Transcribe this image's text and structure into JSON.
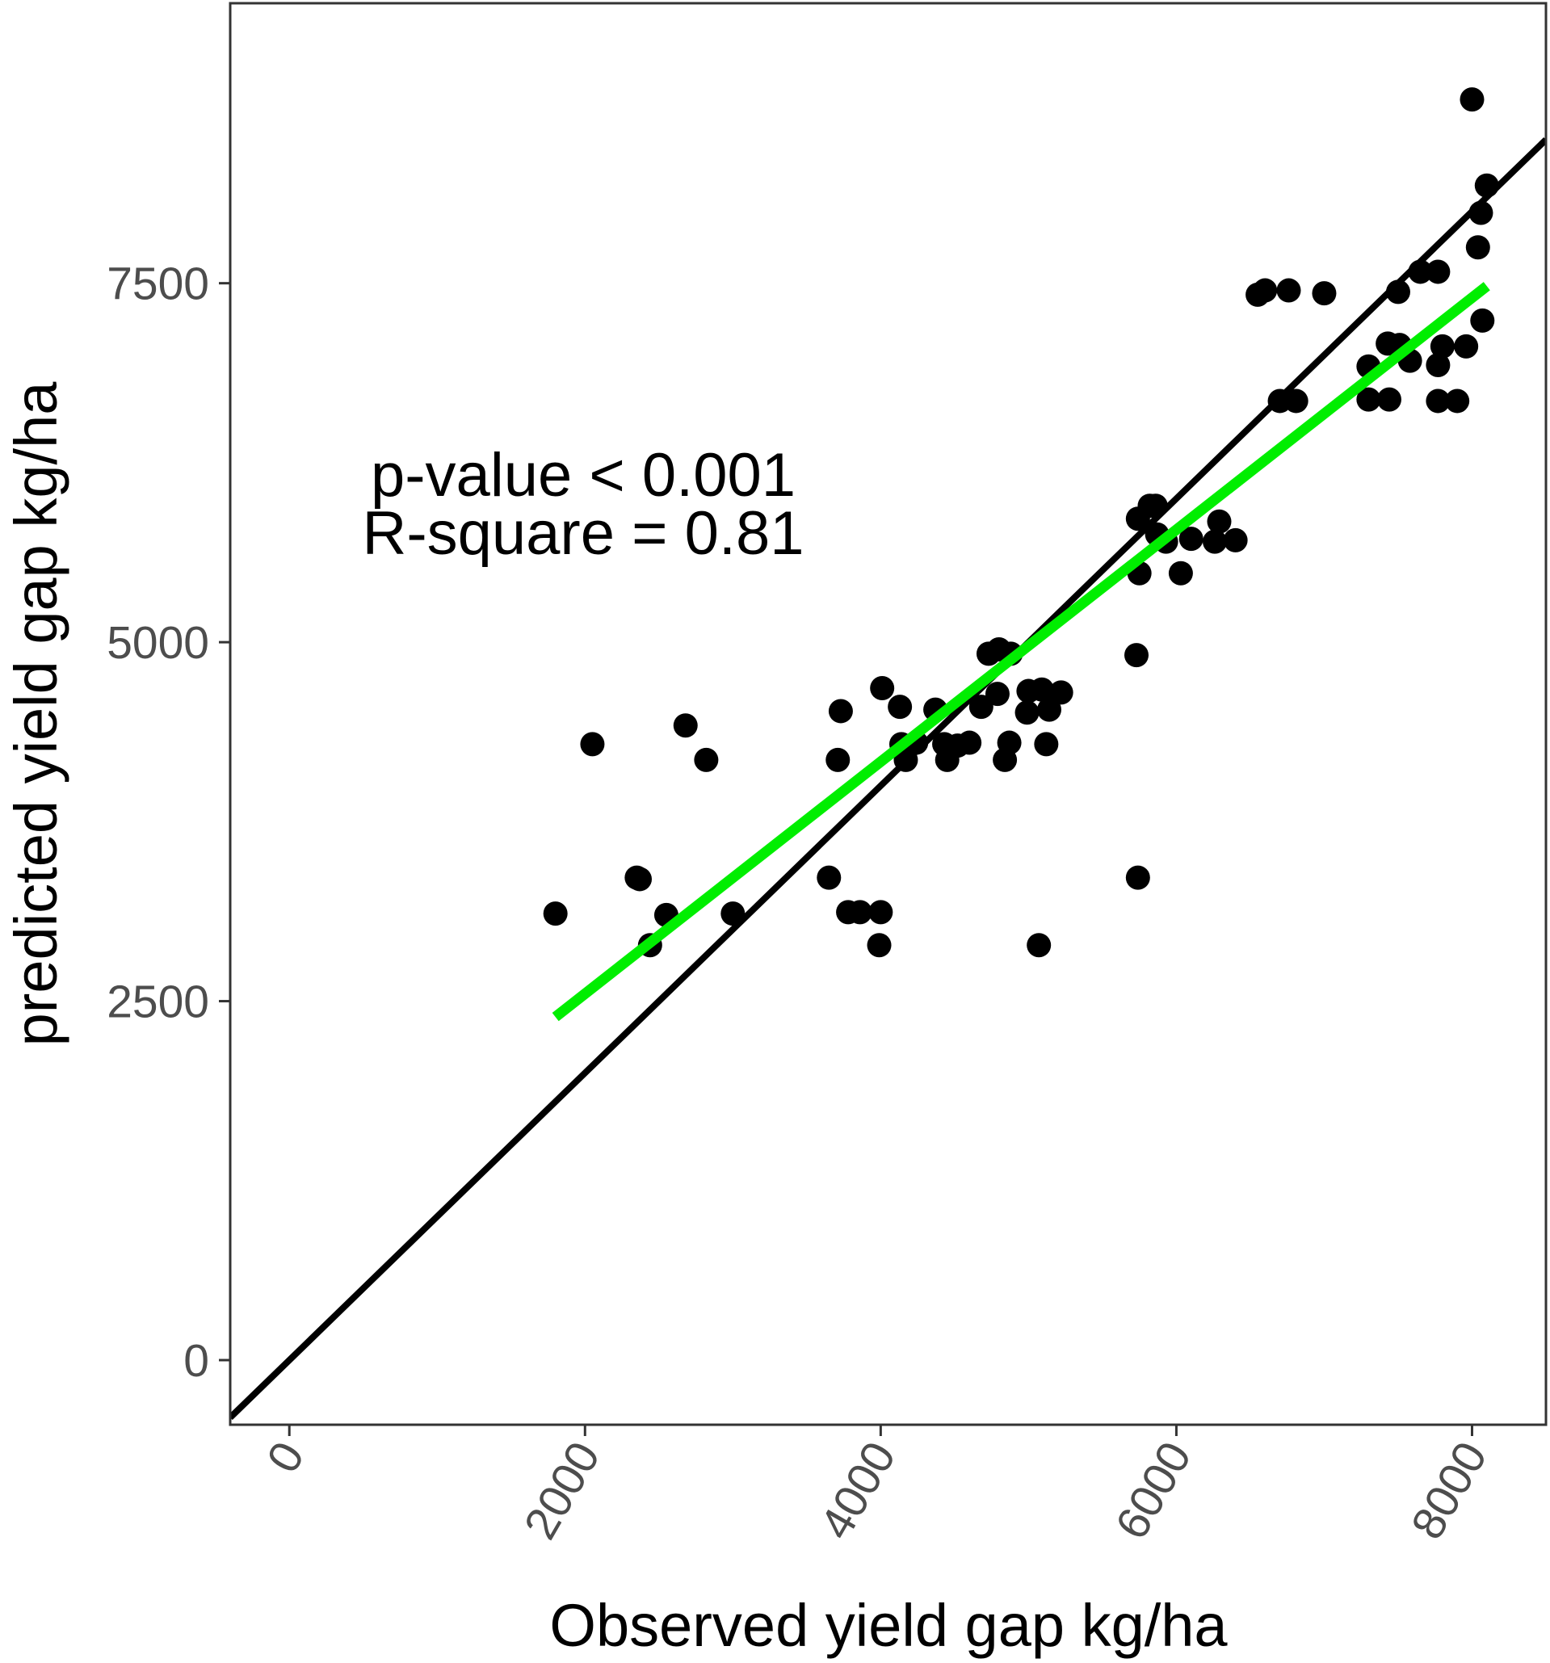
{
  "chart_data": {
    "type": "scatter",
    "xlabel": "Observed yield gap kg/ha",
    "ylabel": "predicted yield gap kg/ha",
    "xlim": [
      -400,
      8500
    ],
    "ylim": [
      -450,
      9450
    ],
    "x_ticks": [
      0,
      2000,
      4000,
      6000,
      8000
    ],
    "y_ticks": [
      0,
      2500,
      5000,
      7500
    ],
    "x_tick_labels": [
      "0",
      "2000",
      "4000",
      "6000",
      "8000"
    ],
    "y_tick_labels": [
      "0",
      "2500",
      "5000",
      "7500"
    ],
    "grid": false,
    "legend": "none",
    "annotations": [
      "p-value < 0.001",
      "R-square = 0.81"
    ],
    "colors": {
      "points": "#000000",
      "identity_line": "#000000",
      "fit_line": "#00ee00"
    },
    "identity_line": {
      "x": [
        -400,
        8500
      ],
      "y": [
        -400,
        8500
      ]
    },
    "fit_line": {
      "x": [
        1800,
        8100
      ],
      "y": [
        2390,
        7480
      ]
    },
    "points": [
      [
        1800,
        3110
      ],
      [
        2050,
        4290
      ],
      [
        2350,
        3360
      ],
      [
        2370,
        3350
      ],
      [
        2440,
        2890
      ],
      [
        2550,
        3100
      ],
      [
        2680,
        4420
      ],
      [
        2820,
        4180
      ],
      [
        3000,
        3110
      ],
      [
        3650,
        3360
      ],
      [
        3710,
        4180
      ],
      [
        3730,
        4520
      ],
      [
        3780,
        3120
      ],
      [
        3860,
        3120
      ],
      [
        4000,
        3120
      ],
      [
        3990,
        2890
      ],
      [
        4010,
        4680
      ],
      [
        4130,
        4550
      ],
      [
        4140,
        4290
      ],
      [
        4170,
        4180
      ],
      [
        4240,
        4300
      ],
      [
        4370,
        4530
      ],
      [
        4430,
        4290
      ],
      [
        4450,
        4180
      ],
      [
        4520,
        4280
      ],
      [
        4600,
        4300
      ],
      [
        4680,
        4550
      ],
      [
        4730,
        4920
      ],
      [
        4790,
        4640
      ],
      [
        4800,
        4950
      ],
      [
        4840,
        4180
      ],
      [
        4870,
        4300
      ],
      [
        4880,
        4920
      ],
      [
        4990,
        4510
      ],
      [
        5000,
        4660
      ],
      [
        5090,
        4670
      ],
      [
        5070,
        2890
      ],
      [
        5120,
        4290
      ],
      [
        5140,
        4530
      ],
      [
        5220,
        4650
      ],
      [
        5730,
        4910
      ],
      [
        5740,
        5860
      ],
      [
        5740,
        3360
      ],
      [
        5750,
        5480
      ],
      [
        5820,
        5950
      ],
      [
        5860,
        5950
      ],
      [
        5870,
        5750
      ],
      [
        5930,
        5700
      ],
      [
        6030,
        5480
      ],
      [
        6100,
        5720
      ],
      [
        6260,
        5700
      ],
      [
        6290,
        5840
      ],
      [
        6400,
        5710
      ],
      [
        6550,
        7420
      ],
      [
        6600,
        7450
      ],
      [
        6700,
        6680
      ],
      [
        6760,
        7450
      ],
      [
        6810,
        6680
      ],
      [
        7000,
        7430
      ],
      [
        7300,
        6920
      ],
      [
        7300,
        6690
      ],
      [
        7430,
        7080
      ],
      [
        7440,
        6690
      ],
      [
        7500,
        7440
      ],
      [
        7510,
        7070
      ],
      [
        7580,
        6960
      ],
      [
        7650,
        7580
      ],
      [
        7770,
        7580
      ],
      [
        7770,
        6930
      ],
      [
        7770,
        6680
      ],
      [
        7800,
        7060
      ],
      [
        7900,
        6680
      ],
      [
        7960,
        7060
      ],
      [
        8000,
        8780
      ],
      [
        8040,
        7750
      ],
      [
        8060,
        7990
      ],
      [
        8070,
        7240
      ],
      [
        8100,
        8180
      ]
    ]
  }
}
